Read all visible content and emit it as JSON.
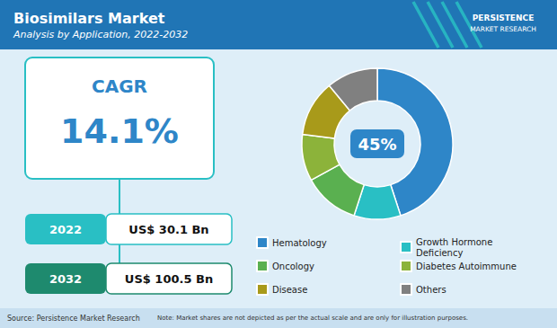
{
  "chart_data": {
    "type": "pie",
    "title": "Biosimilars Market",
    "subtitle": "Analysis by Application, 2022-2032",
    "categories": [
      "Hematology",
      "Growth Hormone\nDeficiency",
      "Oncology",
      "Diabetes Autoimmune",
      "Disease",
      "Others"
    ],
    "values": [
      45,
      10,
      12,
      10,
      12,
      11
    ],
    "colors": [
      "#2e86c8",
      "#29bfc4",
      "#5ab050",
      "#8cb33a",
      "#a89a1a",
      "#808080"
    ],
    "legend": "bottom",
    "annotations": [
      "CAGR",
      "14.1%",
      "2022",
      "US$ 30.1 Bn",
      "2032",
      "US$ 100.5 Bn",
      "45%",
      "PERSISTENCE",
      "MARKET RESEARCH",
      "Source: Persistence Market Research",
      "Note: Market shares are not depicted as per the actual scale and are only for illustration purposes."
    ]
  }
}
